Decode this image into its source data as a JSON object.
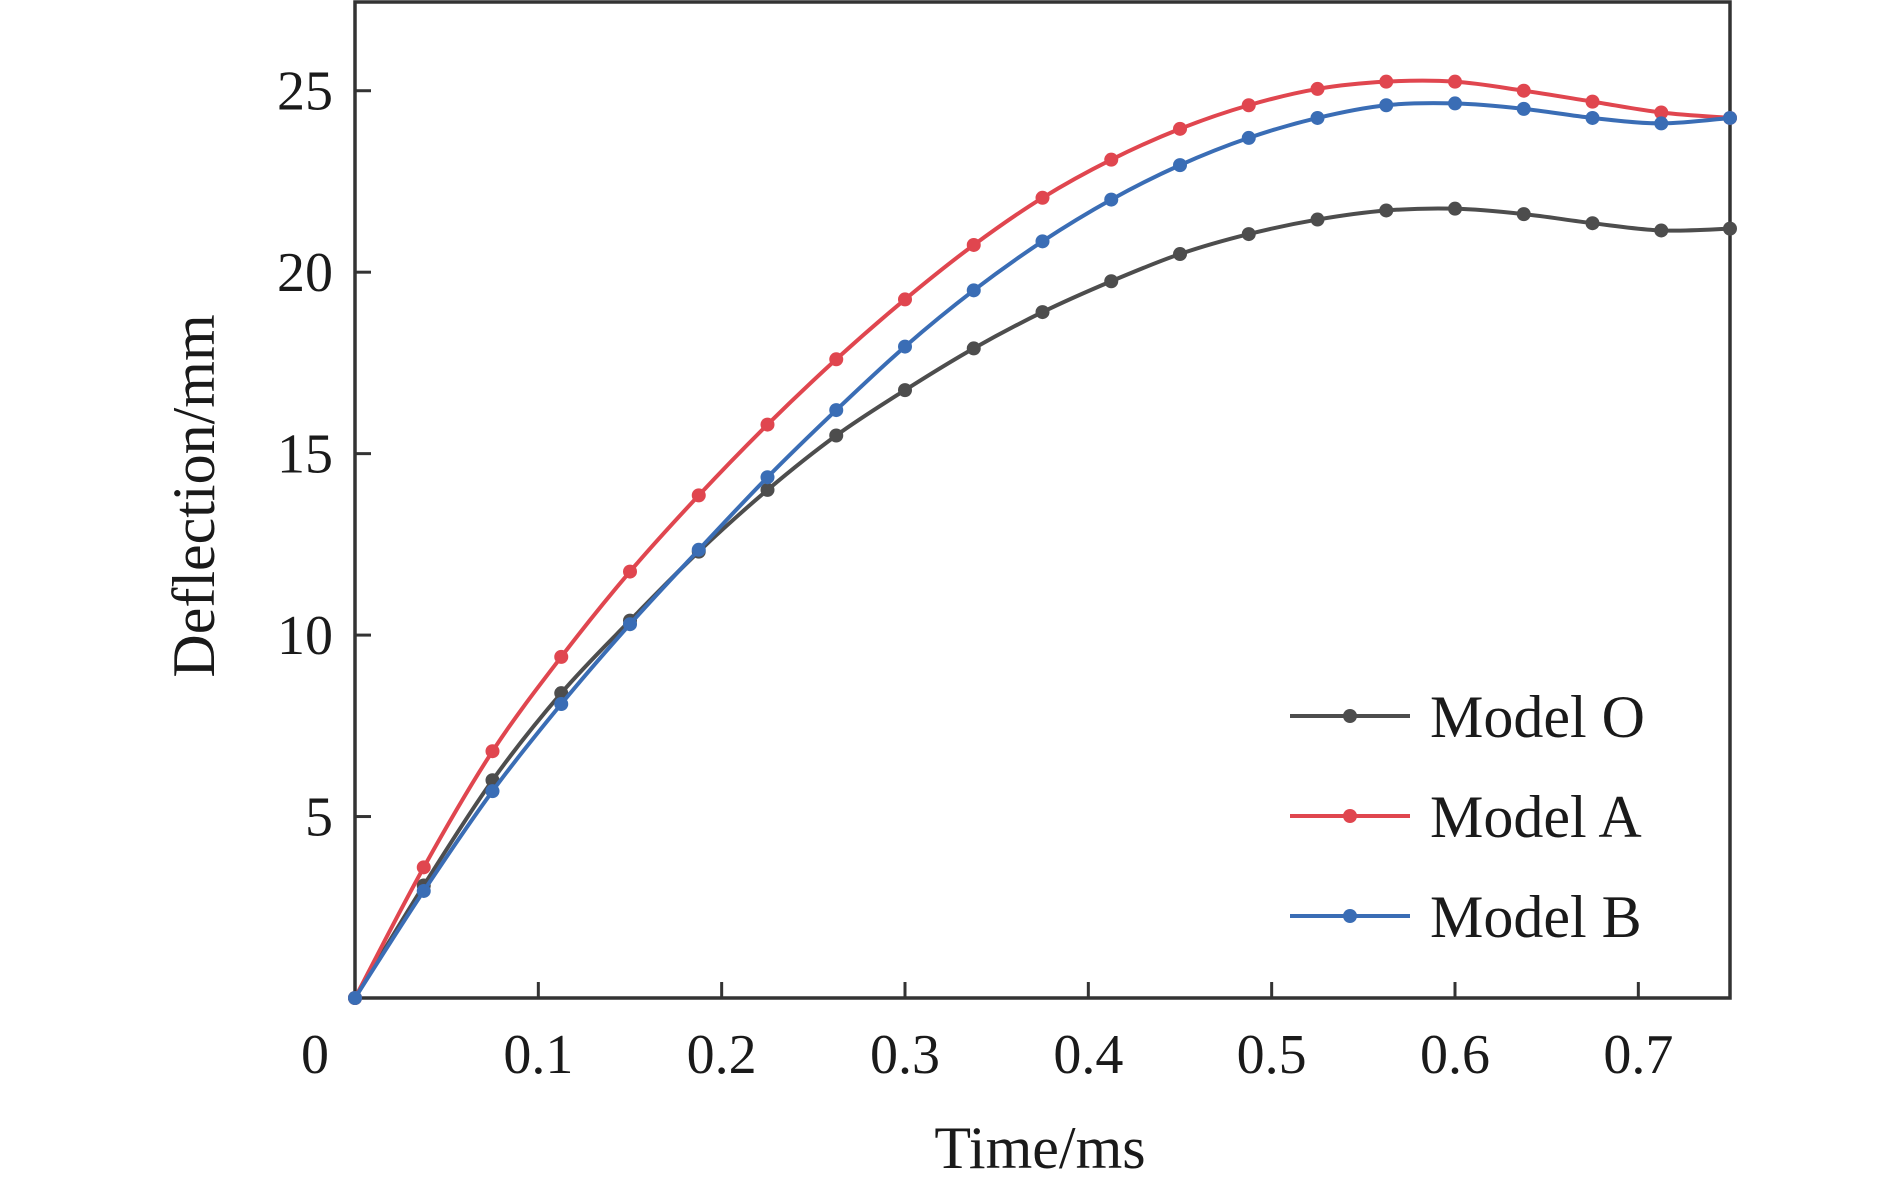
{
  "chart_data": {
    "type": "line",
    "xlabel": "Time/ms",
    "ylabel": "Deflection/mm",
    "xlim": [
      0,
      0.75
    ],
    "ylim": [
      0,
      27.5
    ],
    "xticks": [
      0.1,
      0.2,
      0.3,
      0.4,
      0.5,
      0.6,
      0.7
    ],
    "xtick_labels": [
      "0.1",
      "0.2",
      "0.3",
      "0.4",
      "0.5",
      "0.6",
      "0.7"
    ],
    "yticks": [
      5,
      10,
      15,
      20,
      25
    ],
    "ytick_labels": [
      "5",
      "10",
      "15",
      "20",
      "25"
    ],
    "origin_label": "0",
    "grid": false,
    "legend_position": "bottom-right",
    "x": [
      0,
      0.0375,
      0.075,
      0.1125,
      0.15,
      0.1875,
      0.225,
      0.2625,
      0.3,
      0.3375,
      0.375,
      0.4125,
      0.45,
      0.4875,
      0.525,
      0.5625,
      0.6,
      0.6375,
      0.675,
      0.7125,
      0.75
    ],
    "series": [
      {
        "name": "Model O",
        "color": "#4d4d4d",
        "values": [
          0,
          3.1,
          6.0,
          8.4,
          10.4,
          12.3,
          14.0,
          15.5,
          16.75,
          17.9,
          18.9,
          19.75,
          20.5,
          21.05,
          21.45,
          21.7,
          21.75,
          21.6,
          21.35,
          21.15,
          21.2
        ]
      },
      {
        "name": "Model A",
        "color": "#e0464f",
        "values": [
          0,
          3.6,
          6.8,
          9.4,
          11.75,
          13.85,
          15.8,
          17.6,
          19.25,
          20.75,
          22.05,
          23.1,
          23.95,
          24.6,
          25.05,
          25.25,
          25.25,
          25.0,
          24.7,
          24.4,
          24.25
        ]
      },
      {
        "name": "Model B",
        "color": "#3a6db5",
        "values": [
          0,
          2.95,
          5.7,
          8.1,
          10.3,
          12.35,
          14.35,
          16.2,
          17.95,
          19.5,
          20.85,
          22.0,
          22.95,
          23.7,
          24.25,
          24.6,
          24.65,
          24.5,
          24.25,
          24.1,
          24.25
        ]
      }
    ]
  }
}
